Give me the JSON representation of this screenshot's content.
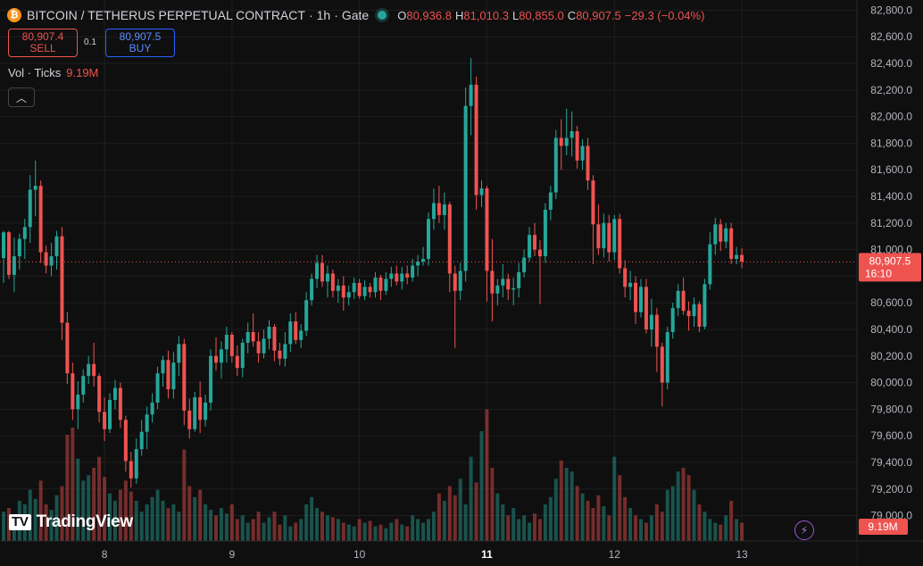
{
  "header": {
    "coin_icon": "bitcoin-icon",
    "symbol": "BITCOIN / TETHERUS PERPETUAL CONTRACT",
    "interval": "1h",
    "exchange": "Gate",
    "ohlc": {
      "o_label": "O",
      "o": "80,936.8",
      "h_label": "H",
      "h": "81,010.3",
      "l_label": "L",
      "l": "80,855.0",
      "c_label": "C",
      "c": "80,907.5",
      "change": "−29.3 (−0.04%)"
    }
  },
  "trade": {
    "sell_price": "80,907.4",
    "sell_label": "SELL",
    "spread": "0.1",
    "buy_price": "80,907.5",
    "buy_label": "BUY"
  },
  "volume_legend": {
    "label": "Vol · Ticks",
    "value": "9.19M"
  },
  "collapse_icon": "chevron-up-icon",
  "logo": {
    "text": "TradingView",
    "icon": "tradingview-logo-icon"
  },
  "colors": {
    "up": "#26a69a",
    "down": "#ef5350",
    "background": "#0f0f0f",
    "grid": "#1e1e1e"
  },
  "chart_data": {
    "type": "candlestick",
    "x_ticks": [
      {
        "label": "8",
        "bar": 19,
        "bold": false
      },
      {
        "label": "9",
        "bar": 43,
        "bold": false
      },
      {
        "label": "10",
        "bar": 67,
        "bold": false
      },
      {
        "label": "11",
        "bar": 91,
        "bold": true
      },
      {
        "label": "12",
        "bar": 115,
        "bold": false
      },
      {
        "label": "13",
        "bar": 139,
        "bold": false
      }
    ],
    "ylim": [
      78950,
      82850
    ],
    "y_ticks": [
      79000,
      79200,
      79400,
      79600,
      79800,
      80000,
      80200,
      80400,
      80600,
      80800,
      81000,
      81200,
      81400,
      81600,
      81800,
      82000,
      82200,
      82400,
      82600,
      82800
    ],
    "grid": true,
    "last_price": {
      "value": 80907.5,
      "label": "80,907.5",
      "countdown": "16:10"
    },
    "volume_label": "9.19M",
    "candles": [
      [
        80937,
        81140,
        80750,
        81130
      ],
      [
        81130,
        81140,
        80780,
        80810
      ],
      [
        80810,
        81090,
        80680,
        80950
      ],
      [
        80950,
        81120,
        80850,
        81080
      ],
      [
        81080,
        81230,
        80930,
        81170
      ],
      [
        81170,
        81560,
        81050,
        81450
      ],
      [
        81450,
        81670,
        81250,
        81480
      ],
      [
        81480,
        81520,
        80900,
        80980
      ],
      [
        80980,
        81030,
        80820,
        80880
      ],
      [
        80880,
        81050,
        80800,
        80950
      ],
      [
        80950,
        81140,
        80850,
        81100
      ],
      [
        81100,
        81170,
        80320,
        80450
      ],
      [
        80450,
        80530,
        79990,
        80070
      ],
      [
        80070,
        80150,
        79720,
        79800
      ],
      [
        79800,
        80010,
        79650,
        79910
      ],
      [
        79910,
        80100,
        79850,
        80050
      ],
      [
        80050,
        80200,
        79990,
        80140
      ],
      [
        80140,
        80300,
        79970,
        80050
      ],
      [
        80050,
        80070,
        79700,
        79780
      ],
      [
        79780,
        79890,
        79560,
        79650
      ],
      [
        79650,
        79920,
        79620,
        79870
      ],
      [
        79870,
        80020,
        79800,
        79960
      ],
      [
        79960,
        80000,
        79660,
        79720
      ],
      [
        79720,
        79750,
        79330,
        79410
      ],
      [
        79410,
        79480,
        79210,
        79280
      ],
      [
        79280,
        79580,
        79240,
        79500
      ],
      [
        79500,
        79720,
        79450,
        79630
      ],
      [
        79630,
        79820,
        79500,
        79760
      ],
      [
        79760,
        79920,
        79700,
        79850
      ],
      [
        79850,
        80120,
        79800,
        80070
      ],
      [
        80070,
        80200,
        79970,
        80170
      ],
      [
        80170,
        80240,
        79880,
        79950
      ],
      [
        79950,
        80230,
        79880,
        80150
      ],
      [
        80150,
        80350,
        80050,
        80290
      ],
      [
        80290,
        80330,
        79680,
        79790
      ],
      [
        79790,
        79880,
        79580,
        79650
      ],
      [
        79650,
        79930,
        79630,
        79890
      ],
      [
        79890,
        80010,
        79620,
        79720
      ],
      [
        79720,
        79910,
        79670,
        79850
      ],
      [
        79850,
        80250,
        79790,
        80200
      ],
      [
        80200,
        80340,
        80090,
        80150
      ],
      [
        80150,
        80310,
        80030,
        80250
      ],
      [
        80250,
        80420,
        80150,
        80360
      ],
      [
        80360,
        80380,
        80150,
        80200
      ],
      [
        80200,
        80280,
        80050,
        80110
      ],
      [
        80110,
        80330,
        80040,
        80300
      ],
      [
        80300,
        80450,
        80220,
        80380
      ],
      [
        80380,
        80520,
        80270,
        80310
      ],
      [
        80310,
        80380,
        80150,
        80220
      ],
      [
        80220,
        80400,
        80180,
        80330
      ],
      [
        80330,
        80470,
        80250,
        80420
      ],
      [
        80420,
        80440,
        80160,
        80240
      ],
      [
        80240,
        80300,
        80130,
        80180
      ],
      [
        80180,
        80380,
        80120,
        80290
      ],
      [
        80290,
        80520,
        80230,
        80460
      ],
      [
        80460,
        80530,
        80290,
        80320
      ],
      [
        80320,
        80440,
        80260,
        80390
      ],
      [
        80390,
        80680,
        80350,
        80620
      ],
      [
        80620,
        80820,
        80580,
        80780
      ],
      [
        80780,
        80960,
        80710,
        80900
      ],
      [
        80900,
        80960,
        80720,
        80760
      ],
      [
        80760,
        80880,
        80640,
        80820
      ],
      [
        80820,
        80850,
        80640,
        80690
      ],
      [
        80690,
        80780,
        80600,
        80730
      ],
      [
        80730,
        80800,
        80540,
        80640
      ],
      [
        80640,
        80730,
        80580,
        80680
      ],
      [
        80680,
        80790,
        80630,
        80750
      ],
      [
        80750,
        80780,
        80630,
        80650
      ],
      [
        80650,
        80770,
        80620,
        80720
      ],
      [
        80720,
        80750,
        80640,
        80680
      ],
      [
        80680,
        80830,
        80640,
        80790
      ],
      [
        80790,
        80810,
        80620,
        80690
      ],
      [
        80690,
        80830,
        80660,
        80780
      ],
      [
        80780,
        80870,
        80720,
        80820
      ],
      [
        80820,
        80880,
        80730,
        80760
      ],
      [
        80760,
        80870,
        80700,
        80820
      ],
      [
        80820,
        80880,
        80740,
        80790
      ],
      [
        80790,
        80930,
        80760,
        80880
      ],
      [
        80880,
        80960,
        80800,
        80910
      ],
      [
        80910,
        81020,
        80880,
        80930
      ],
      [
        80930,
        81280,
        80880,
        81230
      ],
      [
        81230,
        81460,
        81150,
        81350
      ],
      [
        81350,
        81480,
        81200,
        81260
      ],
      [
        81260,
        81430,
        81150,
        81340
      ],
      [
        81340,
        81360,
        80680,
        80820
      ],
      [
        80820,
        80880,
        80260,
        80690
      ],
      [
        80690,
        80900,
        80620,
        80840
      ],
      [
        80840,
        82220,
        80760,
        82080
      ],
      [
        82080,
        82440,
        81860,
        82240
      ],
      [
        82240,
        82300,
        81300,
        81410
      ],
      [
        81410,
        81520,
        81320,
        81460
      ],
      [
        81460,
        81480,
        80610,
        80840
      ],
      [
        80840,
        81080,
        80460,
        80670
      ],
      [
        80670,
        80780,
        80580,
        80730
      ],
      [
        80730,
        80890,
        80640,
        80780
      ],
      [
        80780,
        80820,
        80620,
        80700
      ],
      [
        80700,
        80790,
        80580,
        80710
      ],
      [
        80710,
        80900,
        80640,
        80830
      ],
      [
        80830,
        81000,
        80790,
        80940
      ],
      [
        80940,
        81170,
        80910,
        81110
      ],
      [
        81110,
        81200,
        80950,
        81000
      ],
      [
        81000,
        81070,
        80590,
        80950
      ],
      [
        80950,
        81350,
        80900,
        81300
      ],
      [
        81300,
        81480,
        81220,
        81430
      ],
      [
        81430,
        81900,
        81380,
        81840
      ],
      [
        81840,
        81980,
        81600,
        81780
      ],
      [
        81780,
        82060,
        81710,
        81840
      ],
      [
        81840,
        82040,
        81700,
        81890
      ],
      [
        81890,
        81930,
        81610,
        81670
      ],
      [
        81670,
        81830,
        81600,
        81780
      ],
      [
        81780,
        81840,
        81450,
        81520
      ],
      [
        81520,
        81560,
        80890,
        81190
      ],
      [
        81190,
        81340,
        80960,
        81010
      ],
      [
        81010,
        81270,
        80940,
        81200
      ],
      [
        81200,
        81260,
        80910,
        80980
      ],
      [
        80980,
        81260,
        80920,
        81230
      ],
      [
        81230,
        81270,
        80820,
        80860
      ],
      [
        80860,
        80920,
        80640,
        80720
      ],
      [
        80720,
        80840,
        80620,
        80750
      ],
      [
        80750,
        80800,
        80440,
        80530
      ],
      [
        80530,
        80780,
        80490,
        80720
      ],
      [
        80720,
        80780,
        80370,
        80400
      ],
      [
        80400,
        80630,
        80270,
        80510
      ],
      [
        80510,
        80560,
        80080,
        80270
      ],
      [
        80270,
        80300,
        79820,
        80000
      ],
      [
        80000,
        80420,
        79950,
        80380
      ],
      [
        80380,
        80600,
        80330,
        80560
      ],
      [
        80560,
        80740,
        80500,
        80690
      ],
      [
        80690,
        80790,
        80510,
        80540
      ],
      [
        80540,
        80610,
        80390,
        80500
      ],
      [
        80500,
        80640,
        80420,
        80590
      ],
      [
        80590,
        80610,
        80380,
        80420
      ],
      [
        80420,
        80780,
        80400,
        80740
      ],
      [
        80740,
        81130,
        80700,
        81040
      ],
      [
        81040,
        81240,
        80960,
        81190
      ],
      [
        81190,
        81230,
        80990,
        81060
      ],
      [
        81060,
        81200,
        81010,
        81160
      ],
      [
        81160,
        81200,
        80890,
        80930
      ],
      [
        80930,
        81020,
        80890,
        80960
      ],
      [
        80960,
        81010,
        80860,
        80910
      ]
    ],
    "volume": [
      0.16,
      0.18,
      0.13,
      0.22,
      0.2,
      0.28,
      0.23,
      0.33,
      0.2,
      0.17,
      0.25,
      0.3,
      0.58,
      0.62,
      0.45,
      0.33,
      0.36,
      0.4,
      0.46,
      0.35,
      0.26,
      0.22,
      0.28,
      0.33,
      0.27,
      0.22,
      0.16,
      0.2,
      0.24,
      0.28,
      0.22,
      0.18,
      0.2,
      0.16,
      0.5,
      0.3,
      0.24,
      0.28,
      0.2,
      0.17,
      0.14,
      0.18,
      0.15,
      0.2,
      0.12,
      0.14,
      0.1,
      0.12,
      0.16,
      0.1,
      0.13,
      0.16,
      0.09,
      0.14,
      0.08,
      0.1,
      0.12,
      0.2,
      0.24,
      0.18,
      0.16,
      0.14,
      0.13,
      0.12,
      0.1,
      0.09,
      0.08,
      0.12,
      0.1,
      0.11,
      0.08,
      0.09,
      0.07,
      0.1,
      0.12,
      0.09,
      0.08,
      0.14,
      0.12,
      0.1,
      0.12,
      0.16,
      0.26,
      0.22,
      0.3,
      0.25,
      0.34,
      0.2,
      0.46,
      0.32,
      0.6,
      0.72,
      0.4,
      0.26,
      0.2,
      0.14,
      0.18,
      0.12,
      0.14,
      0.1,
      0.15,
      0.12,
      0.2,
      0.24,
      0.34,
      0.44,
      0.4,
      0.38,
      0.3,
      0.26,
      0.22,
      0.18,
      0.25,
      0.19,
      0.14,
      0.46,
      0.36,
      0.24,
      0.18,
      0.14,
      0.12,
      0.1,
      0.14,
      0.2,
      0.16,
      0.28,
      0.3,
      0.38,
      0.4,
      0.36,
      0.28,
      0.2,
      0.16,
      0.12,
      0.1,
      0.09,
      0.14,
      0.22,
      0.12,
      0.1,
      0.08,
      0.1,
      0.11,
      0.14
    ]
  }
}
